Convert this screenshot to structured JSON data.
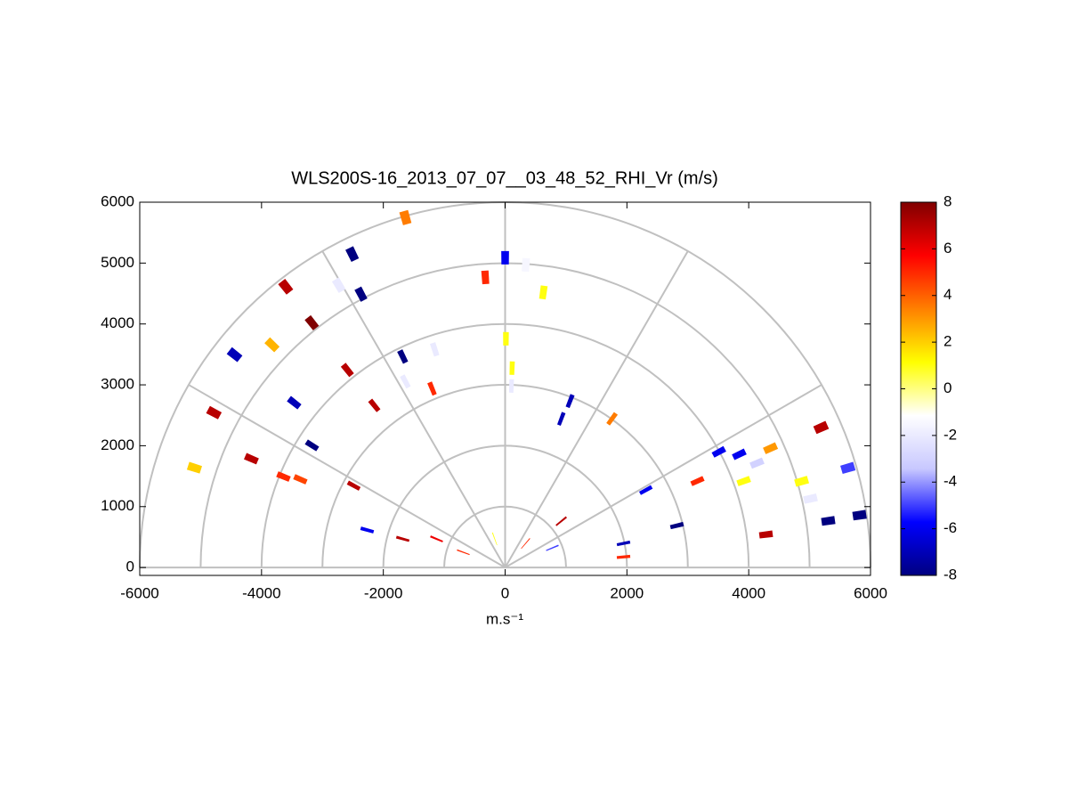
{
  "chart_data": {
    "type": "rhi",
    "title": "WLS200S-16_2013_07_07__03_48_52_RHI_Vr (m/s)",
    "xlabel": "m.s⁻¹",
    "xlim": [
      -6000,
      6000
    ],
    "ylim": [
      -130,
      6000
    ],
    "xticks": [
      -6000,
      -4000,
      -2000,
      0,
      2000,
      4000,
      6000
    ],
    "yticks": [
      0,
      1000,
      2000,
      3000,
      4000,
      5000,
      6000
    ],
    "rgrid": [
      1000,
      2000,
      3000,
      4000,
      5000,
      6000
    ],
    "thetagrid": [
      0,
      30,
      60,
      90,
      120,
      150,
      180
    ],
    "r": [
      5975,
      5728,
      5852,
      5121,
      5294,
      5653,
      4151,
      3420,
      5358,
      5416,
      4533,
      3934,
      3661,
      2826,
      2348,
      1745,
      1219,
      731,
      518,
      1194,
      2935,
      2610,
      3007,
      4561,
      4777,
      5088,
      4982,
      3757,
      3277,
      2983,
      3851,
      3764,
      3174,
      3467,
      3991,
      4270,
      4477,
      4777,
      4167,
      3462,
      2637,
      5675,
      5862,
      5883,
      5361,
      4318,
      2904,
      1984,
      1952,
      839,
      500,
      5070,
      5140,
      5381,
      5075,
      3752,
      4396
    ],
    "theta": [
      105.9,
      116,
      128,
      128.3,
      136.3,
      141.8,
      128.6,
      128.9,
      162.2,
      152,
      156.8,
      157.7,
      156.7,
      151.6,
      164.8,
      164.4,
      157.4,
      160,
      49.6,
      39.5,
      68.7,
      69.3,
      54.3,
      82.1,
      93.9,
      90,
      86.1,
      89.8,
      88,
      88,
      115.9,
      107.9,
      112.2,
      118.2,
      28.4,
      25.8,
      22.5,
      24.2,
      19.9,
      24.2,
      28.8,
      23.9,
      16.2,
      8.4,
      8.2,
      7.2,
      13.7,
      11.5,
      5.1,
      22.5,
      110,
      16.2,
      12.7,
      120.5,
      117.8,
      147.7,
      142
    ],
    "values": [
      3.5,
      -8,
      7,
      8,
      2.5,
      -7,
      7,
      7,
      2,
      7,
      7,
      5,
      4.5,
      7,
      -6,
      7,
      6,
      5,
      5,
      7,
      -7,
      -7,
      3.5,
      1,
      5,
      -6,
      -1.5,
      1,
      1,
      -2,
      -8,
      -2,
      5,
      -2,
      -6,
      -6,
      -3,
      3,
      1,
      5,
      -6,
      7,
      -5,
      -8,
      -8,
      7,
      -8,
      -7,
      5,
      -5,
      1,
      1,
      -2,
      -2,
      -8,
      -8,
      -7
    ],
    "clim": [
      -8,
      8
    ],
    "cticks": [
      -8,
      -6,
      -4,
      -2,
      0,
      2,
      4,
      6,
      8
    ],
    "colormap": [
      "#000080",
      "#0000ff",
      "#c8c8ff",
      "#ffffff",
      "#ffff00",
      "#ff8000",
      "#ff0000",
      "#800000"
    ]
  }
}
